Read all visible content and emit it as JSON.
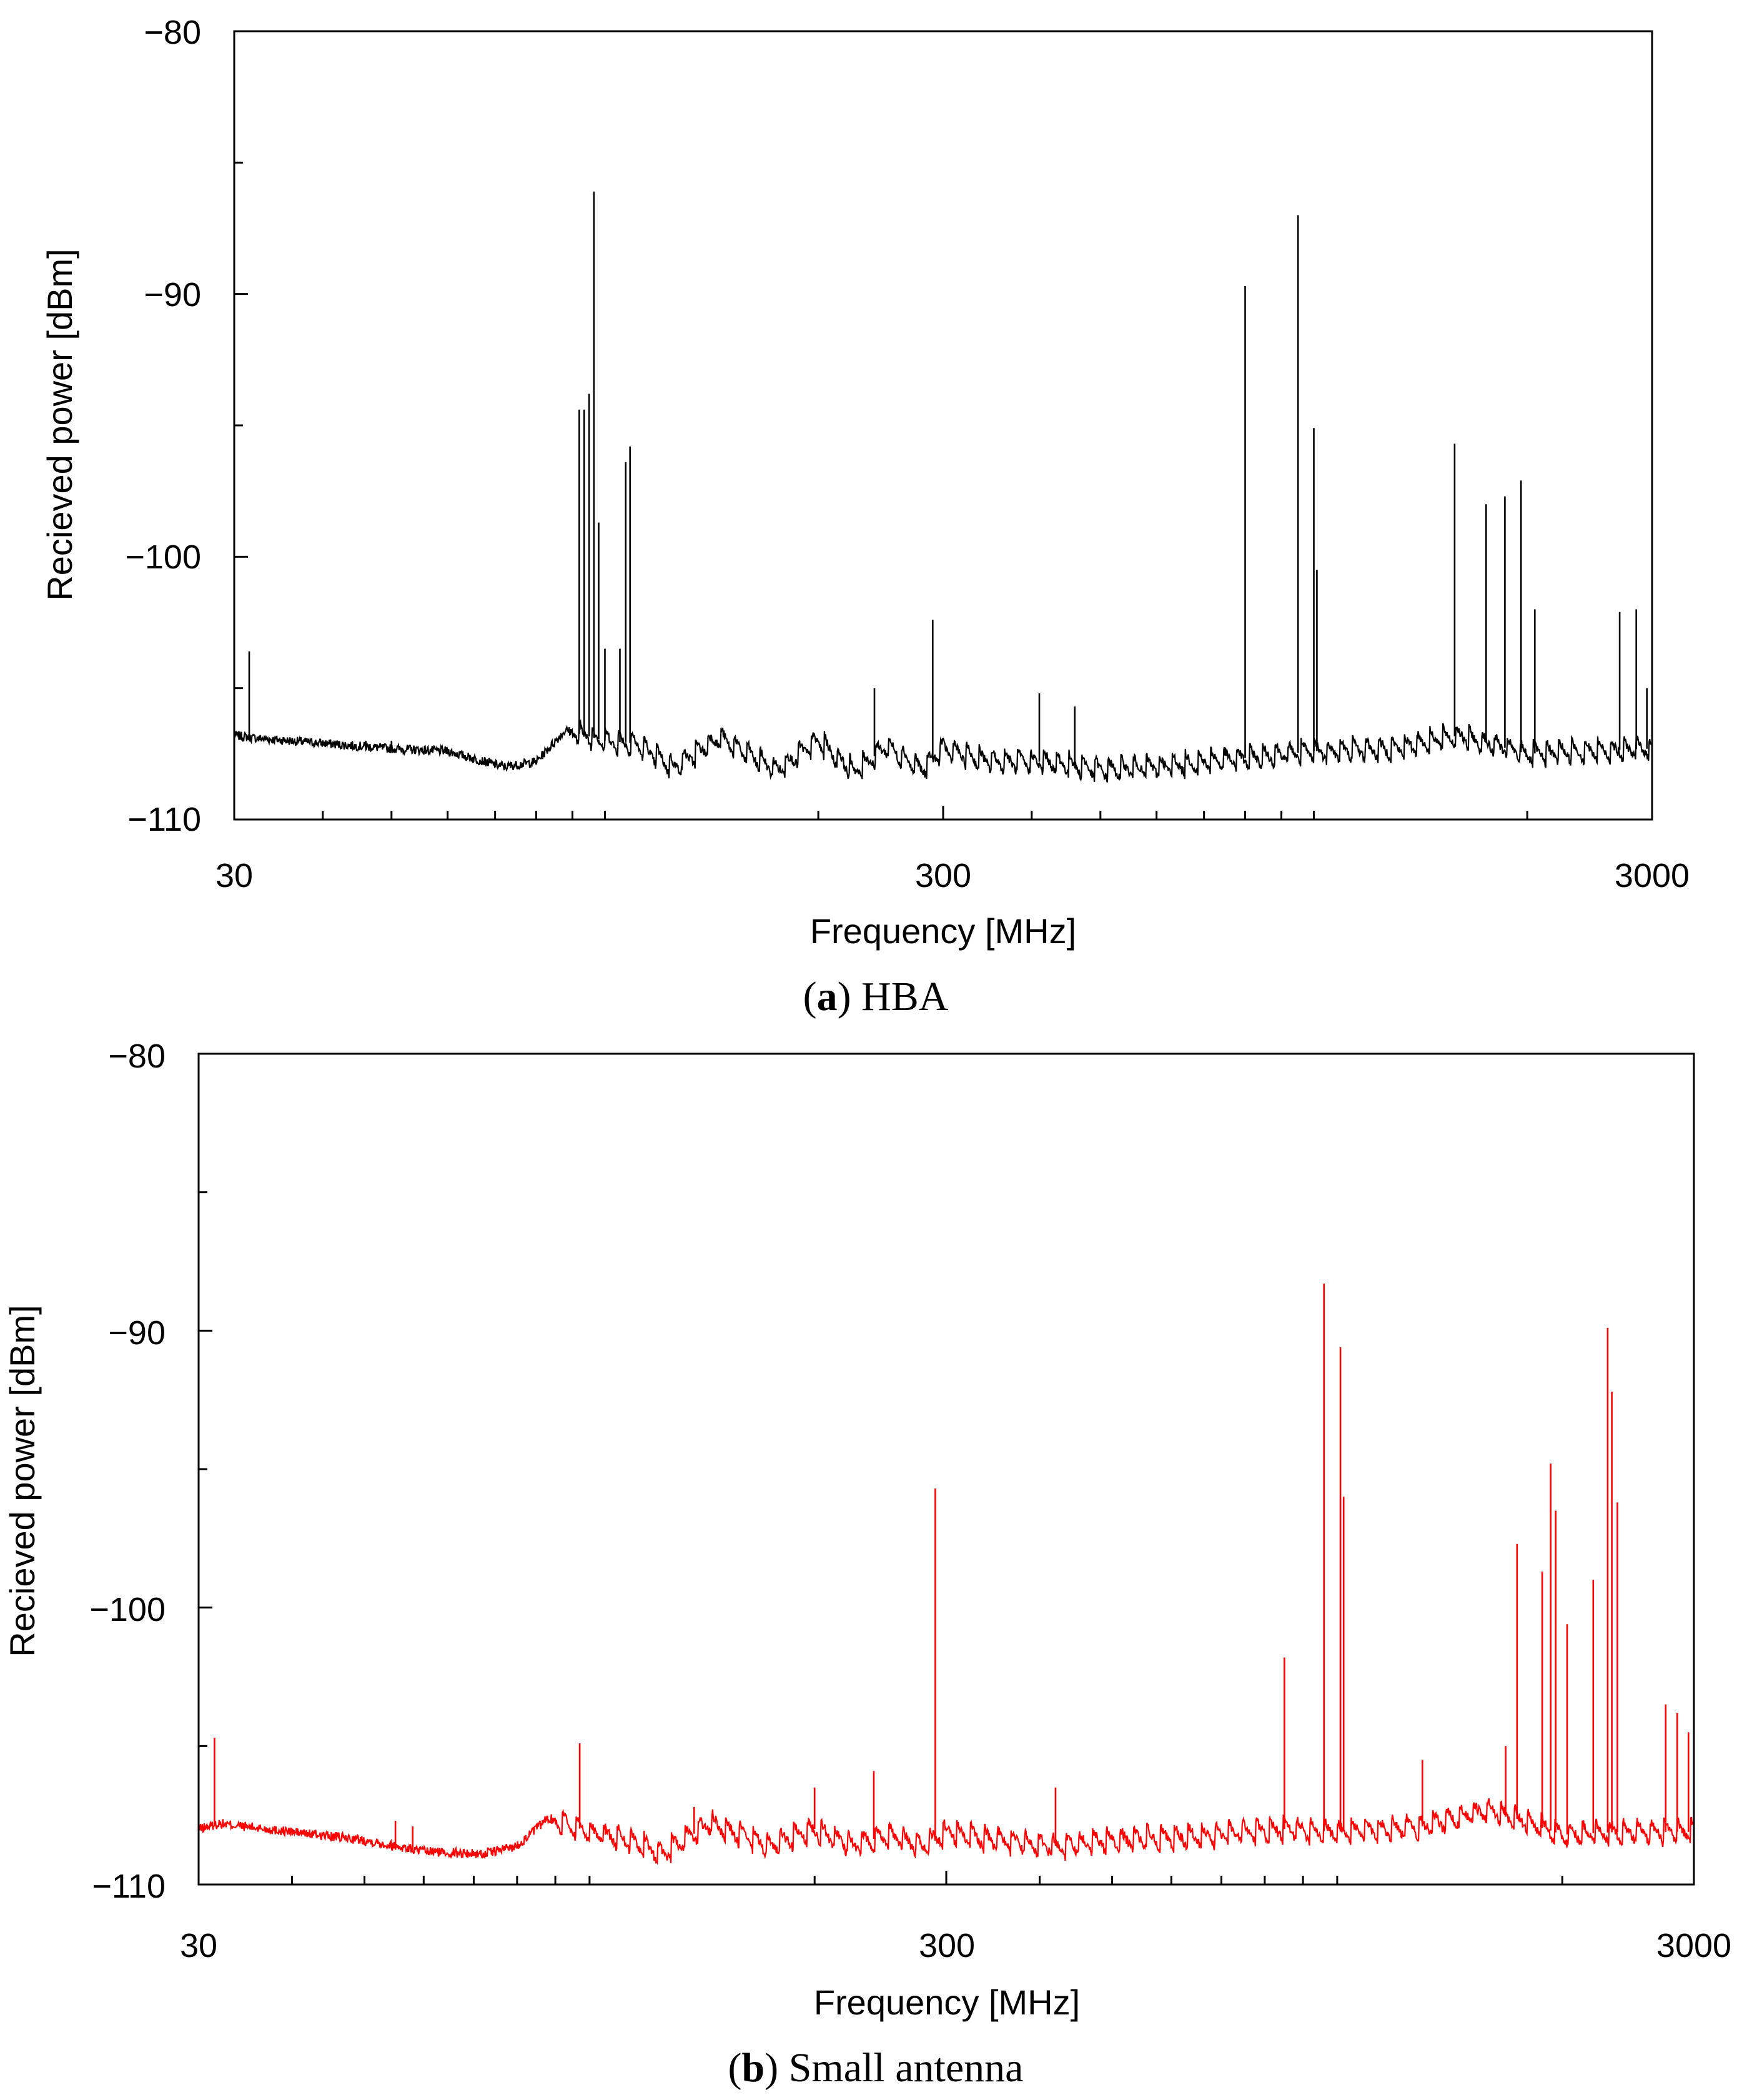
{
  "chart_data": [
    {
      "type": "line",
      "caption_letter": "a",
      "caption_text": " HBA",
      "xlabel": "Frequency [MHz]",
      "ylabel": "Recieved power [dBm]",
      "x_scale": "log",
      "xlim": [
        30,
        3000
      ],
      "ylim": [
        -110,
        -80
      ],
      "x_ticks": [
        "30",
        "300",
        "3000"
      ],
      "y_ticks": [
        "−80",
        "−90",
        "−100",
        "−110"
      ],
      "y_tick_values": [
        -80,
        -90,
        -100,
        -110
      ],
      "line_color": "#000000",
      "grid": false,
      "noise_floor": [
        [
          30,
          -106.8
        ],
        [
          32,
          -106.9
        ],
        [
          40,
          -107.1
        ],
        [
          50,
          -107.3
        ],
        [
          60,
          -107.4
        ],
        [
          72,
          -108.0
        ],
        [
          80,
          -107.8
        ],
        [
          88,
          -106.6
        ],
        [
          100,
          -107.0
        ],
        [
          110,
          -107.1
        ],
        [
          125,
          -108.0
        ],
        [
          145,
          -106.9
        ],
        [
          175,
          -108.1
        ],
        [
          200,
          -107.0
        ],
        [
          225,
          -108.2
        ],
        [
          250,
          -107.2
        ],
        [
          280,
          -108.1
        ],
        [
          300,
          -107.3
        ],
        [
          350,
          -107.8
        ],
        [
          420,
          -107.8
        ],
        [
          500,
          -108.1
        ],
        [
          600,
          -108.0
        ],
        [
          700,
          -107.8
        ],
        [
          850,
          -107.6
        ],
        [
          1000,
          -107.4
        ],
        [
          1300,
          -107.3
        ],
        [
          1600,
          -106.8
        ],
        [
          2000,
          -107.5
        ],
        [
          2400,
          -107.4
        ],
        [
          3000,
          -107.3
        ]
      ],
      "ripple_start": 90,
      "ripple_amplitude": 0.7,
      "peaks": [
        [
          31.5,
          -103.6
        ],
        [
          46,
          -107.0
        ],
        [
          50,
          -107.0
        ],
        [
          92,
          -94.4
        ],
        [
          93.5,
          -94.4
        ],
        [
          95,
          -93.8
        ],
        [
          96.5,
          -86.1
        ],
        [
          98,
          -98.7
        ],
        [
          100,
          -103.5
        ],
        [
          105,
          -103.5
        ],
        [
          107,
          -96.4
        ],
        [
          108.5,
          -95.8
        ],
        [
          240,
          -105.0
        ],
        [
          290,
          -102.4
        ],
        [
          410,
          -105.2
        ],
        [
          460,
          -105.7
        ],
        [
          800,
          -89.7
        ],
        [
          950,
          -87.0
        ],
        [
          1000,
          -95.1
        ],
        [
          1010,
          -100.5
        ],
        [
          1580,
          -95.7
        ],
        [
          1750,
          -98.0
        ],
        [
          1860,
          -97.7
        ],
        [
          1960,
          -97.1
        ],
        [
          2050,
          -102.0
        ],
        [
          2700,
          -102.1
        ],
        [
          2850,
          -102.0
        ],
        [
          2950,
          -105.0
        ]
      ]
    },
    {
      "type": "line",
      "caption_letter": "b",
      "caption_text": " Small antenna",
      "xlabel": "Frequency [MHz]",
      "ylabel": "Recieved power [dBm]",
      "x_scale": "log",
      "xlim": [
        30,
        3000
      ],
      "ylim": [
        -110,
        -80
      ],
      "x_ticks": [
        "30",
        "300",
        "3000"
      ],
      "y_ticks": [
        "−80",
        "−90",
        "−100",
        "−110"
      ],
      "y_tick_values": [
        -80,
        -90,
        -100,
        -110
      ],
      "line_color": "#ff0000",
      "grid": false,
      "noise_floor": [
        [
          30,
          -108.0
        ],
        [
          32,
          -107.8
        ],
        [
          40,
          -108.1
        ],
        [
          50,
          -108.4
        ],
        [
          60,
          -108.8
        ],
        [
          72,
          -108.9
        ],
        [
          80,
          -108.6
        ],
        [
          88,
          -107.6
        ],
        [
          100,
          -108.1
        ],
        [
          110,
          -108.3
        ],
        [
          125,
          -108.9
        ],
        [
          145,
          -107.8
        ],
        [
          175,
          -108.6
        ],
        [
          200,
          -108.0
        ],
        [
          225,
          -108.6
        ],
        [
          250,
          -108.2
        ],
        [
          280,
          -108.6
        ],
        [
          300,
          -108.1
        ],
        [
          350,
          -108.4
        ],
        [
          420,
          -108.6
        ],
        [
          500,
          -108.4
        ],
        [
          600,
          -108.3
        ],
        [
          700,
          -108.2
        ],
        [
          850,
          -108.0
        ],
        [
          1000,
          -108.1
        ],
        [
          1300,
          -107.9
        ],
        [
          1600,
          -107.3
        ],
        [
          2000,
          -108.2
        ],
        [
          2400,
          -108.1
        ],
        [
          3000,
          -108.1
        ]
      ],
      "ripple_start": 90,
      "ripple_amplitude": 0.7,
      "peaks": [
        [
          31.5,
          -104.7
        ],
        [
          55,
          -107.7
        ],
        [
          58,
          -107.9
        ],
        [
          97,
          -104.9
        ],
        [
          105,
          -107.8
        ],
        [
          138,
          -107.2
        ],
        [
          200,
          -106.5
        ],
        [
          240,
          -105.9
        ],
        [
          290,
          -95.7
        ],
        [
          420,
          -106.5
        ],
        [
          850,
          -101.8
        ],
        [
          960,
          -88.3
        ],
        [
          1010,
          -90.6
        ],
        [
          1020,
          -96.0
        ],
        [
          1300,
          -105.5
        ],
        [
          1680,
          -105.0
        ],
        [
          1740,
          -97.7
        ],
        [
          1880,
          -98.7
        ],
        [
          1930,
          -94.8
        ],
        [
          1960,
          -96.5
        ],
        [
          2030,
          -100.6
        ],
        [
          2200,
          -99.0
        ],
        [
          2300,
          -89.9
        ],
        [
          2330,
          -92.2
        ],
        [
          2370,
          -96.2
        ],
        [
          2750,
          -103.5
        ],
        [
          2850,
          -103.8
        ],
        [
          2950,
          -104.5
        ]
      ]
    }
  ]
}
